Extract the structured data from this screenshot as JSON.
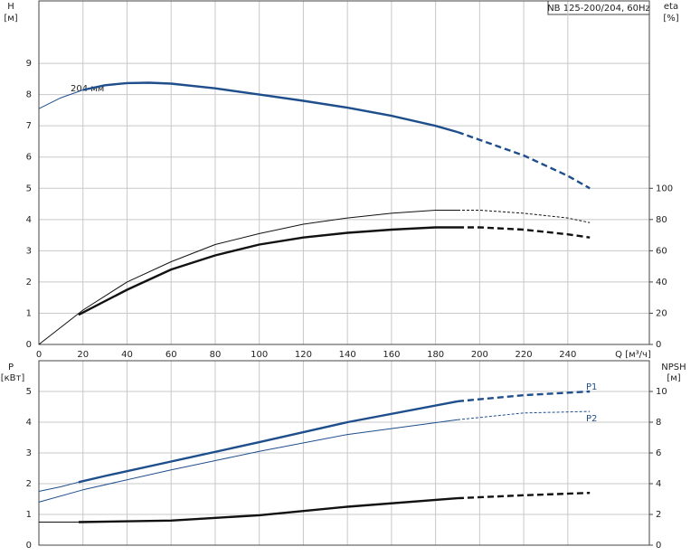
{
  "chart_data": [
    {
      "type": "line",
      "ylabel": "H",
      "yunit": "[м]",
      "y2label": "eta",
      "y2unit": "[%]",
      "title": "NB 125-200/204, 60Hz",
      "annotation": "204 мм",
      "xlabel": "Q [м³/ч]",
      "xlim": [
        0,
        277
      ],
      "xticks": [
        0,
        20,
        40,
        60,
        80,
        100,
        120,
        140,
        160,
        180,
        200,
        220,
        240
      ],
      "ylim": [
        0,
        11
      ],
      "yticks": [
        0,
        1,
        2,
        3,
        4,
        5,
        6,
        7,
        8,
        9
      ],
      "y2lim": [
        0,
        220
      ],
      "y2ticks": [
        0,
        20,
        40,
        60,
        80,
        100
      ],
      "grid": true,
      "series": [
        {
          "color": "#1f4e8c",
          "style": "thin",
          "x": [
            0,
            10,
            20,
            25
          ],
          "values": [
            7.55,
            7.9,
            8.15,
            8.22
          ]
        },
        {
          "color": "#1f4e8c",
          "style": "thick",
          "x": [
            20,
            30,
            40,
            50,
            60,
            80,
            100,
            120,
            140,
            160,
            180,
            190
          ],
          "values": [
            8.15,
            8.3,
            8.37,
            8.38,
            8.35,
            8.2,
            8.0,
            7.8,
            7.58,
            7.32,
            7.0,
            6.8
          ]
        },
        {
          "color": "#1f4e8c",
          "style": "thick-dashed",
          "x": [
            190,
            200,
            220,
            240,
            250
          ],
          "values": [
            6.8,
            6.55,
            6.05,
            5.4,
            5.0
          ]
        },
        {
          "color": "#111111",
          "style": "thin",
          "axis": "y2",
          "x": [
            0,
            20,
            40,
            60,
            80,
            100,
            120,
            140,
            160,
            180,
            190
          ],
          "values": [
            0,
            22,
            40,
            53,
            64,
            71,
            77,
            81,
            84,
            86,
            86
          ]
        },
        {
          "color": "#111111",
          "style": "thin-dashed",
          "axis": "y2",
          "x": [
            190,
            200,
            220,
            240,
            250
          ],
          "values": [
            86,
            86,
            84,
            81,
            78
          ]
        },
        {
          "color": "#111111",
          "style": "thick",
          "axis": "y2",
          "x": [
            18,
            40,
            60,
            80,
            100,
            120,
            140,
            160,
            180,
            190
          ],
          "values": [
            19,
            35,
            48,
            57,
            64,
            68.5,
            71.5,
            73.5,
            75,
            75
          ]
        },
        {
          "color": "#111111",
          "style": "thick-dashed",
          "axis": "y2",
          "x": [
            190,
            200,
            220,
            240,
            250
          ],
          "values": [
            75,
            75,
            73.5,
            70.5,
            68.5
          ]
        }
      ]
    },
    {
      "type": "line",
      "ylabel": "P",
      "yunit": "[кВт]",
      "y2label": "NPSH",
      "y2unit": "[м]",
      "labels": [
        "P1",
        "P2"
      ],
      "xlim": [
        0,
        277
      ],
      "ylim": [
        0,
        6
      ],
      "yticks": [
        0,
        1,
        2,
        3,
        4,
        5
      ],
      "y2lim": [
        0,
        12
      ],
      "y2ticks": [
        0,
        2,
        4,
        6,
        8,
        10
      ],
      "grid": true,
      "series": [
        {
          "color": "#1f4e8c",
          "style": "thin",
          "x": [
            0,
            10,
            18
          ],
          "values": [
            1.75,
            1.9,
            2.05
          ]
        },
        {
          "color": "#1f4e8c",
          "style": "thick",
          "x": [
            18,
            30,
            60,
            100,
            140,
            190
          ],
          "values": [
            2.05,
            2.25,
            2.72,
            3.35,
            4.0,
            4.68
          ]
        },
        {
          "color": "#1f4e8c",
          "style": "thick-dashed",
          "x": [
            190,
            220,
            250
          ],
          "values": [
            4.68,
            4.88,
            5.0
          ]
        },
        {
          "color": "#1f4e8c",
          "style": "thin",
          "x": [
            0,
            20,
            60,
            100,
            140,
            190
          ],
          "values": [
            1.4,
            1.8,
            2.45,
            3.05,
            3.6,
            4.08
          ]
        },
        {
          "color": "#1f4e8c",
          "style": "thin-dashed",
          "x": [
            190,
            220,
            250
          ],
          "values": [
            4.08,
            4.3,
            4.35
          ]
        },
        {
          "color": "#111111",
          "style": "thin",
          "axis": "y2",
          "x": [
            0,
            18
          ],
          "values": [
            1.5,
            1.5
          ]
        },
        {
          "color": "#111111",
          "style": "thick",
          "axis": "y2",
          "x": [
            18,
            60,
            100,
            140,
            190
          ],
          "values": [
            1.5,
            1.6,
            1.95,
            2.5,
            3.05
          ]
        },
        {
          "color": "#111111",
          "style": "thick-dashed",
          "axis": "y2",
          "x": [
            190,
            220,
            250
          ],
          "values": [
            3.05,
            3.25,
            3.4
          ]
        }
      ]
    }
  ]
}
